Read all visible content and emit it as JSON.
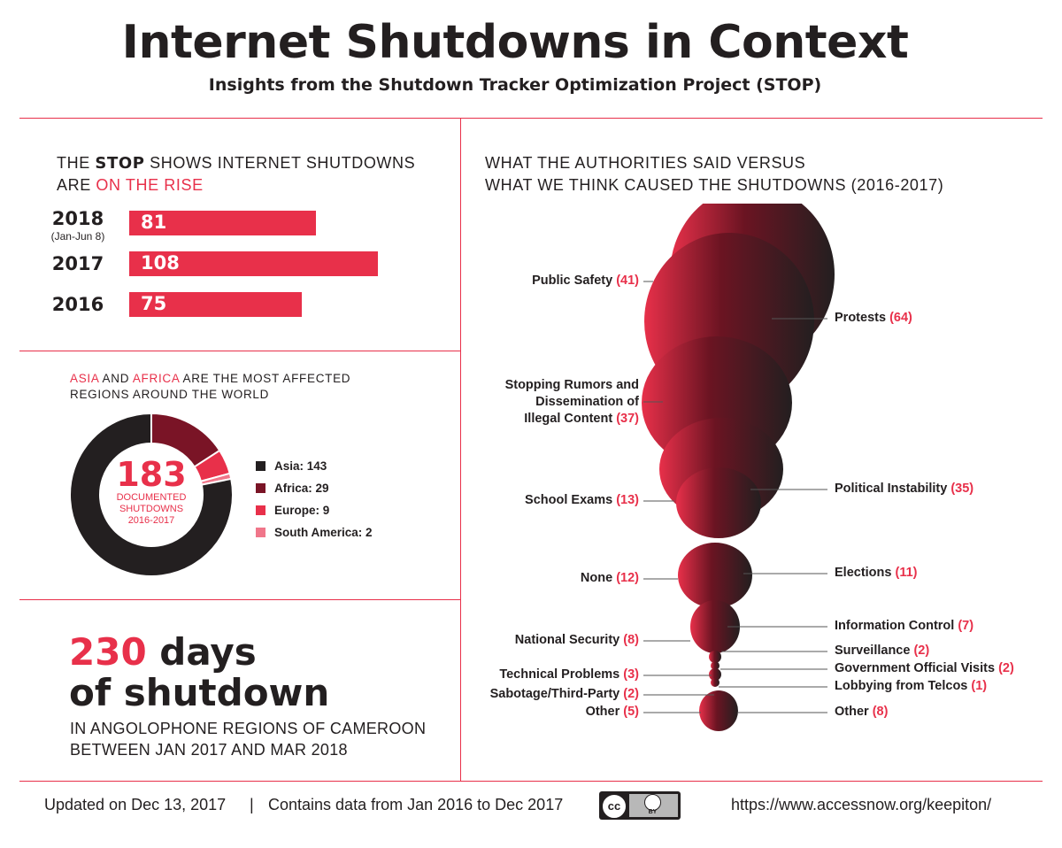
{
  "header": {
    "title": "Internet Shutdowns in Context",
    "subtitle": "Insights from the Shutdown Tracker Optimization Project (STOP)"
  },
  "rise_section": {
    "heading_part1": "THE ",
    "heading_bold": "STOP",
    "heading_part2": " SHOWS INTERNET SHUTDOWNS",
    "heading_line2_prefix": "ARE ",
    "heading_line2_highlight": "ON THE RISE"
  },
  "regions_section": {
    "heading_asia": "ASIA",
    "heading_and": " AND ",
    "heading_africa": "AFRICA",
    "heading_rest": " ARE THE MOST AFFECTED",
    "heading_line2": "REGIONS AROUND THE WORLD",
    "center_number": "183",
    "center_line1": "DOCUMENTED",
    "center_line2": "SHUTDOWNS",
    "center_line3": "2016-2017"
  },
  "cameroon_section": {
    "days_number": "230",
    "days_word": "days",
    "line2": "of shutdown",
    "note_line1": "IN ANGOLOPHONE REGIONS OF CAMEROON",
    "note_line2": "BETWEEN JAN 2017 AND MAR 2018"
  },
  "causes_section": {
    "heading_line1": "WHAT THE AUTHORITIES SAID VERSUS",
    "heading_line2": "WHAT WE THINK CAUSED THE SHUTDOWNS (2016-2017)"
  },
  "footer": {
    "updated": "Updated on Dec 13, 2017",
    "separator": "|",
    "contains": "Contains data from Jan 2016 to Dec 2017",
    "url": "https://www.accessnow.org/keepiton/",
    "license_cc": "cc",
    "license_by": "BY"
  },
  "colors": {
    "accent": "#e8304a",
    "dark": "#231f20",
    "africa": "#7a1426",
    "south_america": "#f0768a"
  },
  "chart_data": [
    {
      "type": "bar",
      "orientation": "horizontal",
      "title": "THE STOP SHOWS INTERNET SHUTDOWNS ARE ON THE RISE",
      "categories": [
        "2018",
        "2017",
        "2016"
      ],
      "category_notes": [
        "(Jan-Jun 8)",
        "",
        ""
      ],
      "values": [
        81,
        108,
        75
      ],
      "xlim": [
        0,
        108
      ]
    },
    {
      "type": "pie",
      "subtype": "donut",
      "title": "ASIA AND AFRICA ARE THE MOST AFFECTED REGIONS AROUND THE WORLD",
      "labels": [
        "Asia",
        "Africa",
        "Europe",
        "South America"
      ],
      "values": [
        143,
        29,
        9,
        2
      ],
      "colors": [
        "#231f20",
        "#7a1426",
        "#e8304a",
        "#f0768a"
      ],
      "total": 183
    },
    {
      "type": "bar",
      "subtype": "mirrored-bubble",
      "title": "WHAT THE AUTHORITIES SAID VERSUS WHAT WE THINK CAUSED THE SHUTDOWNS (2016-2017)",
      "series": [
        {
          "name": "What the authorities said",
          "categories": [
            "Public Safety",
            "Stopping Rumors and Dissemination of Illegal Content",
            "School Exams",
            "None",
            "National Security",
            "Technical Problems",
            "Sabotage/Third-Party",
            "Other"
          ],
          "values": [
            41,
            37,
            13,
            12,
            8,
            3,
            2,
            5
          ]
        },
        {
          "name": "What we think caused the shutdowns",
          "categories": [
            "Protests",
            "Political Instability",
            "Elections",
            "Information Control",
            "Surveillance",
            "Government Official Visits",
            "Lobbying from Telcos",
            "Other"
          ],
          "values": [
            64,
            35,
            11,
            7,
            2,
            2,
            1,
            8
          ]
        }
      ]
    }
  ]
}
